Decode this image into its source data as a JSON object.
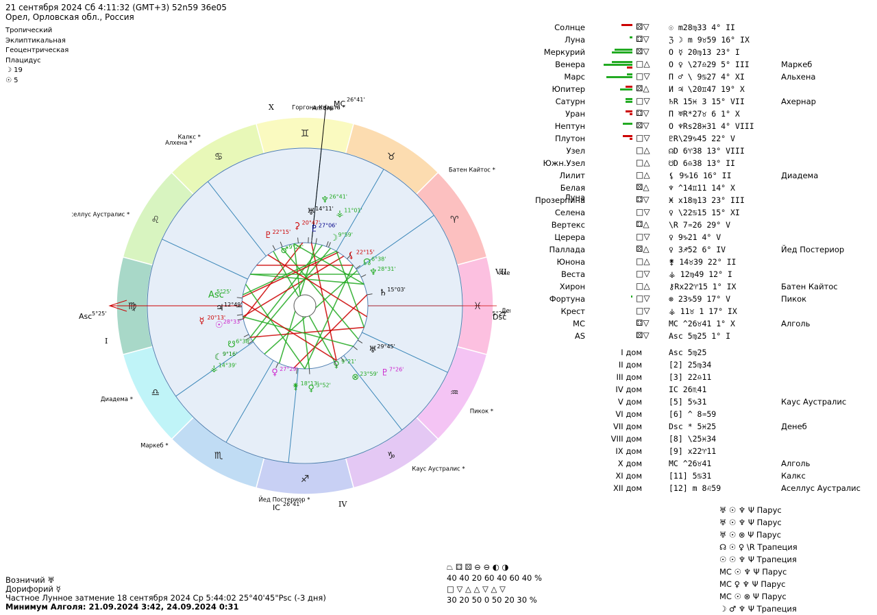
{
  "header": {
    "line1": "21 сентября 2024  Сб   4:11:32 (GMT+3) 52n59  36e05",
    "line2": "Орел, Орловская обл., Россия"
  },
  "settings": [
    "Тропический",
    "Эклиптикальная",
    "Геоцентрическая",
    "Плацидус",
    "☽  19",
    "☉  5"
  ],
  "chart": {
    "houses": [
      "X",
      "I",
      "IV",
      "VII"
    ],
    "asc_label": "Asc",
    "asc_deg": "5°25'",
    "dsc_label": "Dsc",
    "dsc_deg": "5°25'",
    "mc_label": "MC",
    "mc_deg": "26°41'",
    "ic_label": "IC",
    "ic_deg": "26°41'",
    "stars_outer": [
      {
        "name": "Горгона Кварта",
        "a": 86
      },
      {
        "name": "Алголь",
        "a": 84
      },
      {
        "name": "Батен Кайтос",
        "a": 43
      },
      {
        "name": "Ахернар",
        "a": 9
      },
      {
        "name": "Денеб",
        "a": -2
      },
      {
        "name": "Пикок",
        "a": -33
      },
      {
        "name": "Каус Аустралис",
        "a": -57
      },
      {
        "name": "Йед Постериор",
        "a": -96
      },
      {
        "name": "Маркеб",
        "a": -134
      },
      {
        "name": "Диадема",
        "a": -151
      },
      {
        "name": "Аселлус Аустралис",
        "a": 153
      },
      {
        "name": "Алхена",
        "a": 125
      },
      {
        "name": "Калкс",
        "a": 122
      }
    ],
    "signs": [
      {
        "glyph": "♍",
        "a": 180,
        "color": "#a8d8c8"
      },
      {
        "glyph": "♌",
        "a": 150,
        "color": "#d8f4c0"
      },
      {
        "glyph": "♋",
        "a": 120,
        "color": "#e8f8b8"
      },
      {
        "glyph": "♊",
        "a": 90,
        "color": "#fafac0"
      },
      {
        "glyph": "♉",
        "a": 60,
        "color": "#fcdcb0"
      },
      {
        "glyph": "♈",
        "a": 30,
        "color": "#fcc0c0"
      },
      {
        "glyph": "♓",
        "a": 0,
        "color": "#fcc0e0"
      },
      {
        "glyph": "♒",
        "a": -30,
        "color": "#f4c4f4"
      },
      {
        "glyph": "♑",
        "a": -60,
        "color": "#e4c8f4"
      },
      {
        "glyph": "♐",
        "a": -90,
        "color": "#c8d0f4"
      },
      {
        "glyph": "♏",
        "a": -120,
        "color": "#c0dcf4"
      },
      {
        "glyph": "♎",
        "a": -150,
        "color": "#c0f4f8"
      }
    ],
    "planets": [
      {
        "g": "♅",
        "t": "14°11'",
        "a": 87,
        "r": 138,
        "c": "#000000"
      },
      {
        "g": "♆",
        "t": "26°41'",
        "a": 80,
        "r": 158,
        "c": "#22aa22"
      },
      {
        "g": "⚳",
        "t": "20°47'",
        "a": 96,
        "r": 118,
        "c": "#cc0000"
      },
      {
        "g": "♇",
        "t": "27°06'",
        "a": 84,
        "r": 114,
        "c": "#000088"
      },
      {
        "g": "⚶",
        "t": "11°01'",
        "a": 70,
        "r": 144,
        "c": "#22aa22"
      },
      {
        "g": "♇",
        "t": "22°15'",
        "a": 118,
        "r": 118,
        "c": "#cc0000"
      },
      {
        "g": "♂",
        "t": "9°27'",
        "a": 111,
        "r": 88,
        "c": "#22aa22"
      },
      {
        "g": "☽",
        "t": "9°59'",
        "a": 68,
        "r": 108,
        "c": "#22aa22"
      },
      {
        "g": "⚸",
        "t": "22°15'",
        "a": 48,
        "r": 100,
        "c": "#cc0000"
      },
      {
        "g": "☊",
        "t": "6°38'",
        "a": 36,
        "r": 110,
        "c": "#22aa22"
      },
      {
        "g": "♆",
        "t": "28°31'",
        "a": 27,
        "r": 110,
        "c": "#22aa22"
      },
      {
        "g": "♄",
        "t": "15°03'",
        "a": 10,
        "r": 114,
        "c": "#000000"
      },
      {
        "g": "♅",
        "t": "29°45'",
        "a": -33,
        "r": 116,
        "c": "#000000"
      },
      {
        "g": "♇",
        "t": "7°26'",
        "a": -40,
        "r": 150,
        "c": "#cc22cc"
      },
      {
        "g": "⊗",
        "t": "23°59'",
        "a": -55,
        "r": 126,
        "c": "#22aa22"
      },
      {
        "g": "♀",
        "t": "9°21'",
        "a": -62,
        "r": 96,
        "c": "#22aa22"
      },
      {
        "g": "♀",
        "t": "3°52'",
        "a": -86,
        "r": 120,
        "c": "#22aa22"
      },
      {
        "g": "⚵",
        "t": "18°13'",
        "a": -97,
        "r": 118,
        "c": "#22aa22"
      },
      {
        "g": "♀",
        "t": "27°29'",
        "a": -115,
        "r": 106,
        "c": "#cc22cc"
      },
      {
        "g": "⚶",
        "t": "14°39'",
        "a": -146,
        "r": 162,
        "c": "#22aa22"
      },
      {
        "g": "☾",
        "t": "9°16'",
        "a": -150,
        "r": 148,
        "c": "#008800"
      },
      {
        "g": "☋",
        "t": "6°38'",
        "a": -153,
        "r": 122,
        "c": "#22aa22"
      },
      {
        "g": "☉",
        "t": "28°33'",
        "a": -168,
        "r": 130,
        "c": "#cc22cc"
      },
      {
        "g": "☿",
        "t": "20°13'",
        "a": -172,
        "r": 152,
        "c": "#cc0000"
      },
      {
        "g": "♃",
        "t": "12°49'",
        "a": -179,
        "r": 126,
        "c": "#000000"
      },
      {
        "g": "Asc",
        "t": "5°25'",
        "a": 173,
        "r": 138,
        "c": "#22aa22"
      }
    ],
    "aspects": [
      {
        "a1": 92,
        "a2": -168,
        "c": "#cc0000"
      },
      {
        "a1": 74,
        "a2": -150,
        "c": "#22aa22"
      },
      {
        "a1": 84,
        "a2": -60,
        "c": "#cc0000"
      },
      {
        "a1": 58,
        "a2": 172,
        "c": "#cc0000"
      },
      {
        "a1": 52,
        "a2": -170,
        "c": "#cc0000"
      },
      {
        "a1": 34,
        "a2": -130,
        "c": "#22aa22"
      },
      {
        "a1": 30,
        "a2": 150,
        "c": "#22aa22"
      },
      {
        "a1": 10,
        "a2": -100,
        "c": "#cc0000"
      },
      {
        "a1": 112,
        "a2": -32,
        "c": "#22aa22"
      },
      {
        "a1": 120,
        "a2": -62,
        "c": "#22aa22"
      },
      {
        "a1": 100,
        "a2": -86,
        "c": "#22aa22"
      },
      {
        "a1": 80,
        "a2": -114,
        "c": "#22aa22"
      },
      {
        "a1": 66,
        "a2": -146,
        "c": "#22aa22"
      },
      {
        "a1": 140,
        "a2": 40,
        "c": "#cc0000"
      },
      {
        "a1": 150,
        "a2": 20,
        "c": "#22aa22"
      },
      {
        "a1": 170,
        "a2": 60,
        "c": "#22aa22"
      },
      {
        "a1": -20,
        "a2": -150,
        "c": "#cc0000"
      },
      {
        "a1": -40,
        "a2": -170,
        "c": "#22aa22"
      },
      {
        "a1": -60,
        "a2": 176,
        "c": "#cc0000"
      },
      {
        "a1": 100,
        "a2": 20,
        "c": "#22aa22"
      },
      {
        "a1": 60,
        "a2": -20,
        "c": "#22aa22"
      },
      {
        "a1": -90,
        "a2": 160,
        "c": "#22aa22"
      },
      {
        "a1": 40,
        "a2": -90,
        "c": "#22aa22"
      },
      {
        "a1": 126,
        "a2": -10,
        "c": "#cc0000"
      }
    ]
  },
  "planet_table": [
    {
      "name": "Солнце",
      "bars": [
        [
          "#cc0000",
          16
        ]
      ],
      "boxes": "⚄▽",
      "pos": "☉ m28♍33   4° II",
      "star": ""
    },
    {
      "name": "Луна",
      "bars": [
        [
          "#22aa22",
          4
        ]
      ],
      "boxes": "⚃▽",
      "pos": "ℨ ☽ m 9♉59  16° IX",
      "star": ""
    },
    {
      "name": "Меркурий",
      "bars": [
        [
          "#22aa22",
          26
        ],
        [
          "#22aa22",
          30
        ]
      ],
      "boxes": "⚄▽",
      "pos": "O ☿  20♍13  23° I",
      "star": ""
    },
    {
      "name": "Венера",
      "bars": [
        [
          "#22aa22",
          30
        ],
        [
          "#22aa22",
          42
        ],
        [
          "#cc0000",
          8
        ]
      ],
      "boxes": "□△",
      "pos": "O ♀ \\27♎29   5° III",
      "star": "Маркеб"
    },
    {
      "name": "Марс",
      "bars": [
        [
          "#22aa22",
          8
        ],
        [
          "#22aa22",
          38
        ]
      ],
      "boxes": "□▽",
      "pos": "Π ♂ \\ 9♋27   4° XI",
      "star": "Альхена"
    },
    {
      "name": "Юпитер",
      "bars": [
        [
          "#cc0000",
          10
        ],
        [
          "#22aa22",
          18
        ]
      ],
      "boxes": "⚄△",
      "pos": "И ♃ \\20♊47  19° X",
      "star": ""
    },
    {
      "name": "Сатурн",
      "bars": [
        [
          "#22aa22",
          10
        ],
        [
          "#22aa22",
          10
        ]
      ],
      "boxes": "□▽",
      "pos": "♄R 15♓ 3  15° VII",
      "star": "Ахернар"
    },
    {
      "name": "Уран",
      "bars": [
        [
          "#cc0000",
          10
        ],
        [
          "#cc0000",
          4
        ]
      ],
      "boxes": "⚃▽",
      "pos": "Π ♅R*27♉ 6   1° X",
      "star": ""
    },
    {
      "name": "Нептун",
      "bars": [
        [
          "#22aa22",
          14
        ]
      ],
      "boxes": "⚄▽",
      "pos": "O ♆Rs28♓31   4° VIII",
      "star": ""
    },
    {
      "name": "Плутон",
      "bars": [
        [
          "#cc0000",
          14
        ],
        [
          "#cc0000",
          4
        ]
      ],
      "boxes": "□▽",
      "pos": "♇R\\29♑45  22° V",
      "star": ""
    },
    {
      "name": "Узел",
      "bars": [],
      "boxes": "□△",
      "pos": "☊D  6♈38  13° VIII",
      "star": ""
    },
    {
      "name": "Южн.Узел",
      "bars": [],
      "boxes": "□△",
      "pos": "☋D  6♎38  13° II",
      "star": ""
    },
    {
      "name": "Лилит",
      "bars": [],
      "boxes": "□△",
      "pos": "⚸  9♑16  16° II",
      "star": "Диадема"
    },
    {
      "name": "Белая Луна",
      "bars": [],
      "boxes": "⚄△",
      "pos": "♆ ^14♊11  14° X",
      "star": ""
    },
    {
      "name": "Прозерпина",
      "bars": [],
      "boxes": "⚃▽",
      "pos": "Ӿ x18♍13  23° III",
      "star": ""
    },
    {
      "name": "Селена",
      "bars": [],
      "boxes": "□▽",
      "pos": "♀ \\22♋15  15° XI",
      "star": ""
    },
    {
      "name": "Вертекс",
      "bars": [],
      "boxes": "⚃△",
      "pos": "\\R  7♒26  29° V",
      "star": ""
    },
    {
      "name": "Церера",
      "bars": [],
      "boxes": "□▽",
      "pos": "♀  9♑21   4° V",
      "star": ""
    },
    {
      "name": "Паллада",
      "bars": [],
      "boxes": "⚄△",
      "pos": "♀  3♐52   6° IV",
      "star": "Йед Постериор"
    },
    {
      "name": "Юнона",
      "bars": [],
      "boxes": "□△",
      "pos": "⚵  14♉39  22° II",
      "star": ""
    },
    {
      "name": "Веста",
      "bars": [],
      "boxes": "□▽",
      "pos": "⚶  12♍49  12° I",
      "star": ""
    },
    {
      "name": "Хирон",
      "bars": [],
      "boxes": "□△",
      "pos": "⚷Rx22♈15   1° IX",
      "star": "Батен Кайтос"
    },
    {
      "name": "Фортуна",
      "bars": [
        [
          "#22aa22",
          2
        ]
      ],
      "boxes": "□▽",
      "pos": "⊗  23♑59  17° V",
      "star": "Пикок"
    },
    {
      "name": "Крест",
      "bars": [],
      "boxes": "□▽",
      "pos": "⚶  11♉  1  17° IX",
      "star": ""
    },
    {
      "name": "MC",
      "bars": [],
      "boxes": "⚃▽",
      "pos": "MC ^26♉41   1° X",
      "star": "Алголь"
    },
    {
      "name": "AS",
      "bars": [],
      "boxes": "⚄▽",
      "pos": "Asc  5♍25   1° I",
      "star": ""
    }
  ],
  "house_table": [
    {
      "name": "I дом",
      "pos": "Asc  5♍25",
      "star": ""
    },
    {
      "name": "II дом",
      "pos": "[2] 25♍34",
      "star": ""
    },
    {
      "name": "III дом",
      "pos": "[3] 22♎11",
      "star": ""
    },
    {
      "name": "IV дом",
      "pos": "IC  26♏41",
      "star": ""
    },
    {
      "name": "V дом",
      "pos": "[5]  5♑31",
      "star": "Каус Аустралис"
    },
    {
      "name": "VI дом",
      "pos": "[6] ^ 8♒59",
      "star": ""
    },
    {
      "name": "VII дом",
      "pos": "Dsc *  5♓25",
      "star": "Денеб"
    },
    {
      "name": "VIII дом",
      "pos": "[8] \\25♓34",
      "star": ""
    },
    {
      "name": "IX дом",
      "pos": "[9] x22♈11",
      "star": ""
    },
    {
      "name": "X дом",
      "pos": "MC ^26♉41",
      "star": "Алголь"
    },
    {
      "name": "XI дом",
      "pos": "[11]  5♋31",
      "star": "Калкс"
    },
    {
      "name": "XII дом",
      "pos": "[12] m  8♌59",
      "star": "Аселлус Аустралис"
    }
  ],
  "figures": [
    "♅ ☉ ♆ Ψ  Парус",
    "♅ ☉ ♆ Ψ  Парус",
    "♅ ☉ ⊗ Ψ  Парус",
    "☊ ☉ ♀ \\R  Трапеция",
    "☉ ☉ ♆ Ψ  Трапеция",
    "MC ☉ ♆ Ψ  Парус",
    "MC ♀ ♆ Ψ  Парус",
    "MC ☉ ⊗ Ψ  Парус",
    "☽ ♂ ♆ Ψ  Трапеция"
  ],
  "stats": {
    "row1_icons": "⏢ ⚃ ⚄    ⊖ ⊖ ◐ ◑",
    "row1_vals": "40  40  20      60  40  60  40 %",
    "row2_icons": "□ ▽ △    △ ▽ △ ▽",
    "row2_vals": "30  20  50       0  50  20  30 %"
  },
  "footer": {
    "line1": "Возничий  ♅",
    "line2": "Дорифорий  ☿",
    "line3": "Частное Лунное затмение 18 сентября 2024 Ср  5:44:02 25°40'45\"Psc (-3 дня)",
    "line4": "Минимум Алголя: 21.09.2024  3:42,  24.09.2024  0:31"
  }
}
